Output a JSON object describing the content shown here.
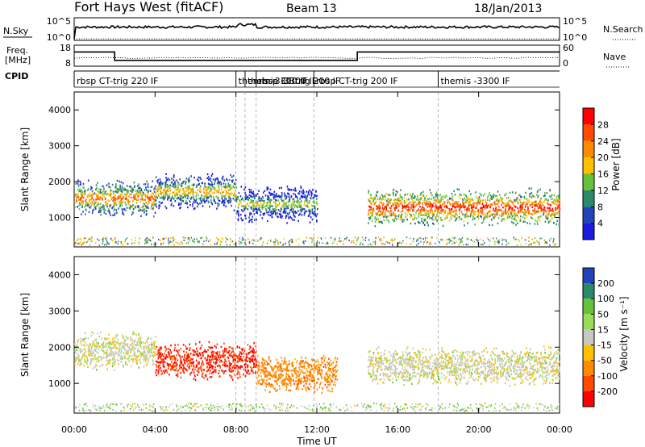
{
  "header": {
    "station": "Fort Hays West (fitACF)",
    "beam": "Beam 13",
    "date": "18/Jan/2013"
  },
  "nsky_panel": {
    "left_label": "N.Sky",
    "left_ticks": [
      "10^5",
      "10^0"
    ],
    "right_label": "N.Search",
    "right_ticks": [
      "10^5",
      "10^0"
    ]
  },
  "freq_panel": {
    "left_label_1": "Freq.",
    "left_label_2": "[MHz]",
    "left_ticks": [
      "18",
      "8"
    ],
    "right_label": "Nave",
    "right_ticks": [
      "60",
      "0"
    ]
  },
  "cpid": {
    "label": "CPID",
    "segments": [
      {
        "start_h": 0.0,
        "text": "rbsp CT-trig 220 IF"
      },
      {
        "start_h": 8.0,
        "text": "themis -3300 IF"
      },
      {
        "start_h": 8.45,
        "text": "themis -3300 IF"
      },
      {
        "start_h": 9.0,
        "text": "rbsp CT-trig 200 IF"
      },
      {
        "start_h": 11.85,
        "text": "rbsp CT-trig 200 IF"
      },
      {
        "start_h": 18.0,
        "text": "themis -3300 IF"
      }
    ]
  },
  "power_colorbar": {
    "label": "Power [dB]",
    "ticks": [
      "28",
      "24",
      "20",
      "16",
      "12",
      "8",
      "4"
    ],
    "colors": [
      "#ff0000",
      "#ff4a00",
      "#ff8c00",
      "#ffc000",
      "#66c23a",
      "#2a8a6a",
      "#2244bb",
      "#1a1ae0"
    ]
  },
  "velocity_colorbar": {
    "label": "Velocity [m s⁻¹]",
    "ticks": [
      "200",
      "100",
      "50",
      "15",
      "-15",
      "-50",
      "-100",
      "-200"
    ],
    "colors": [
      "#2244bb",
      "#2a8a6a",
      "#66c23a",
      "#99dd55",
      "#c8c8c0",
      "#ffc000",
      "#ff8c00",
      "#ff4a00",
      "#ff0000"
    ]
  },
  "chart_data": {
    "type": "heatmap",
    "xlabel": "Time UT",
    "ylabel": "Slant Range [km]",
    "x_ticks": [
      "00:00",
      "04:00",
      "08:00",
      "12:00",
      "16:00",
      "20:00",
      "00:00"
    ],
    "y_ticks": [
      "1000",
      "2000",
      "3000",
      "4000"
    ],
    "xlim_hours": [
      0,
      24
    ],
    "ylim_km": [
      180,
      4500
    ],
    "freq_steps_mhz": [
      {
        "start_h": 0,
        "end_h": 2,
        "value": 14
      },
      {
        "start_h": 2,
        "end_h": 14,
        "value": 10
      },
      {
        "start_h": 14,
        "end_h": 24,
        "value": 14
      }
    ],
    "power_bands": [
      {
        "start_h": 0,
        "end_h": 4,
        "range_km": 1550,
        "level_db": 24
      },
      {
        "start_h": 4,
        "end_h": 8,
        "range_km": 1750,
        "level_db": 20
      },
      {
        "start_h": 8,
        "end_h": 12,
        "range_km": 1400,
        "level_db": 16
      },
      {
        "start_h": 14.5,
        "end_h": 24,
        "range_km": 1300,
        "level_db": 28
      }
    ],
    "velocity_bands": [
      {
        "start_h": 0,
        "end_h": 4,
        "range_km": 1900,
        "velocity": 0
      },
      {
        "start_h": 4,
        "end_h": 9,
        "range_km": 1650,
        "velocity": -200
      },
      {
        "start_h": 9,
        "end_h": 13,
        "range_km": 1300,
        "velocity": -80
      },
      {
        "start_h": 14.5,
        "end_h": 24,
        "range_km": 1500,
        "velocity": 0
      }
    ]
  }
}
